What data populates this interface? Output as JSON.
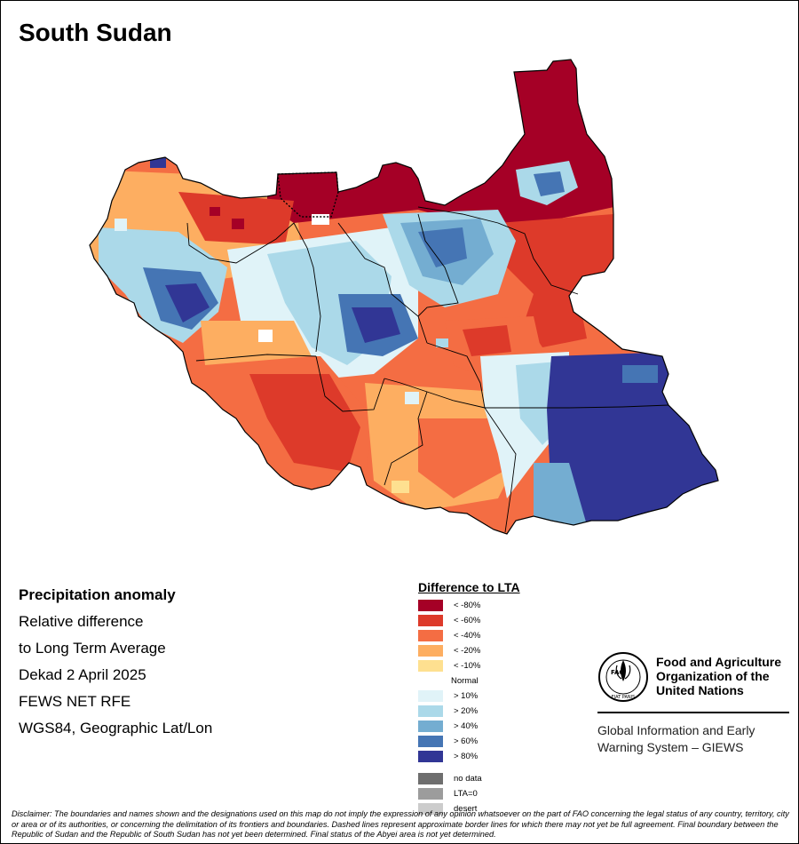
{
  "map": {
    "title": "South Sudan",
    "country": "South Sudan"
  },
  "info": {
    "heading": "Precipitation anomaly",
    "lines": [
      "Relative difference",
      "to Long Term Average",
      "Dekad 2 April 2025",
      "FEWS NET RFE",
      "WGS84, Geographic Lat/Lon"
    ]
  },
  "legend": {
    "title": "Difference to LTA",
    "classes": [
      {
        "label": "< -80%",
        "color": "#a50026"
      },
      {
        "label": "< -60%",
        "color": "#dd3a2a"
      },
      {
        "label": "< -40%",
        "color": "#f46d43"
      },
      {
        "label": "< -20%",
        "color": "#fdae61"
      },
      {
        "label": "< -10%",
        "color": "#fee090"
      },
      {
        "label": "Normal",
        "color": "#ffffff"
      },
      {
        "label": "> 10%",
        "color": "#e0f3f8"
      },
      {
        "label": "> 20%",
        "color": "#abd9e9"
      },
      {
        "label": "> 40%",
        "color": "#74add1"
      },
      {
        "label": "> 60%",
        "color": "#4575b4"
      },
      {
        "label": "> 80%",
        "color": "#313695"
      }
    ],
    "extra": [
      {
        "label": "no data",
        "color": "#6e6e6e"
      },
      {
        "label": "LTA=0",
        "color": "#9c9c9c"
      },
      {
        "label": "desert",
        "color": "#cccccc"
      }
    ]
  },
  "fao": {
    "logo_text": "FAO",
    "logo_motto": "FIAT PANIS",
    "org_name": "Food and Agriculture\nOrganization of the\nUnited Nations",
    "system_name": "Global Information and Early\nWarning System – GIEWS"
  },
  "disclaimer": "Disclaimer: The boundaries and names shown and the designations used on this map do not imply the expression of any opinion whatsoever on the part of FAO concerning the legal status of any country, territory, city or area or of its authorities, or concerning the delimitation of its frontiers and boundaries. Dashed lines represent approximate border lines for which there may not yet be full agreement.  Final boundary between the Republic of Sudan and the Republic of South Sudan has not yet been determined. Final status of the Abyei area is not yet determined."
}
